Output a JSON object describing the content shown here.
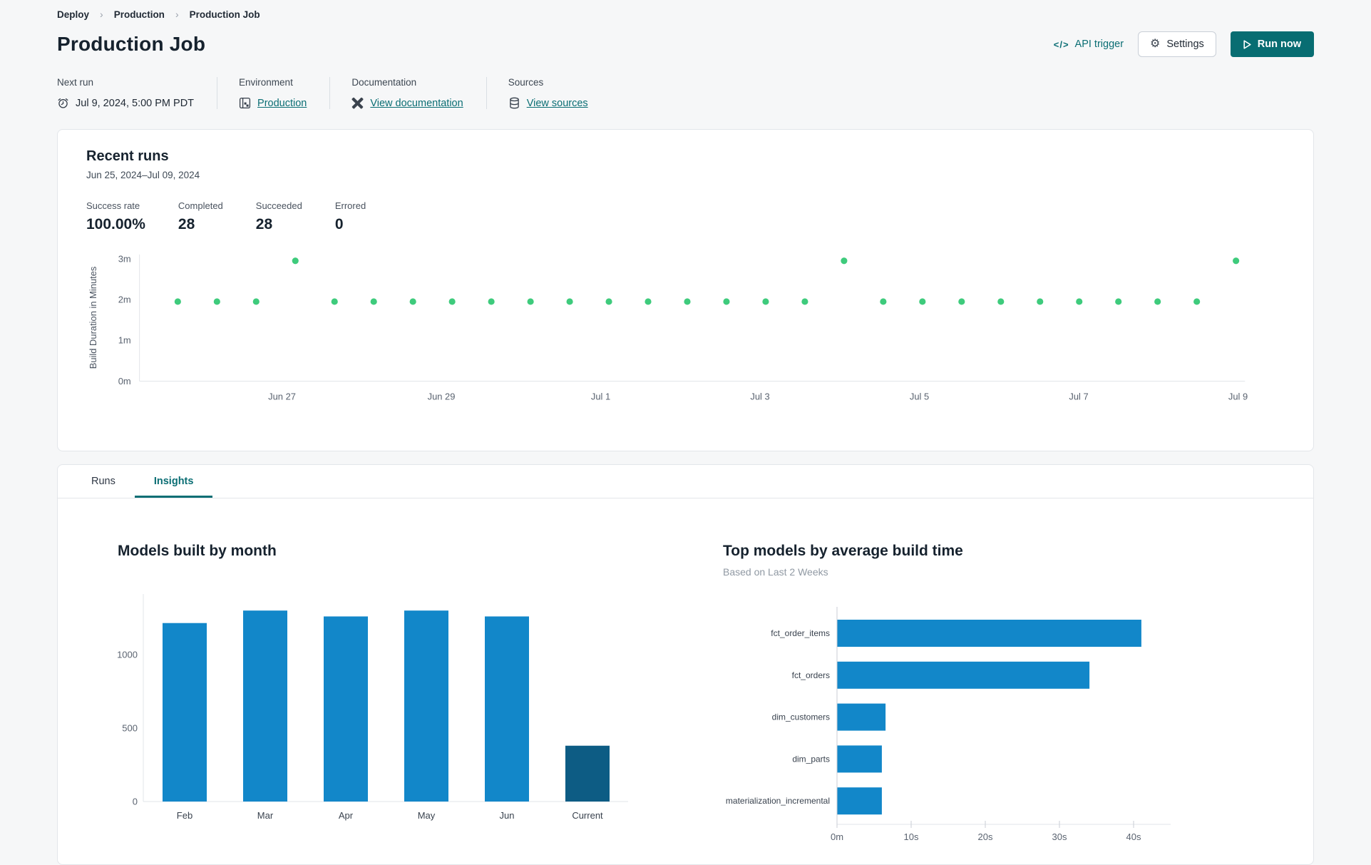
{
  "breadcrumb": {
    "separator": "›",
    "items": [
      {
        "label": "Deploy"
      },
      {
        "label": "Production"
      },
      {
        "label": "Production Job"
      }
    ]
  },
  "header": {
    "title": "Production Job",
    "api_trigger_label": "API trigger",
    "api_trigger_glyph": "</>",
    "settings_label": "Settings",
    "run_now_label": "Run now"
  },
  "info": {
    "next_run_label": "Next run",
    "next_run_value": "Jul 9, 2024, 5:00 PM PDT",
    "environment_label": "Environment",
    "environment_value": "Production",
    "documentation_label": "Documentation",
    "documentation_value": "View documentation",
    "sources_label": "Sources",
    "sources_value": "View sources"
  },
  "recent_runs": {
    "title": "Recent runs",
    "date_range": "Jun 25, 2024–Jul 09, 2024",
    "stats": [
      {
        "label": "Success rate",
        "value": "100.00%"
      },
      {
        "label": "Completed",
        "value": "28"
      },
      {
        "label": "Succeeded",
        "value": "28"
      },
      {
        "label": "Errored",
        "value": "0"
      }
    ]
  },
  "tabs": [
    {
      "label": "Runs",
      "active": false
    },
    {
      "label": "Insights",
      "active": true
    }
  ],
  "colors": {
    "accent_teal": "#086d72",
    "link_teal": "#0b6e74",
    "dot_green": "#3ecb7c",
    "bar_blue": "#1287c9",
    "bar_dark_blue": "#0d5c84",
    "axis_line": "#e2e5e9",
    "page_bg": "#f6f7f8",
    "card_border": "#e3e6ea"
  },
  "chart_data": [
    {
      "type": "scatter",
      "name": "recent-runs-build-duration",
      "ylabel": "Build Duration in Minutes",
      "y_ticks": [
        "0m",
        "1m",
        "2m",
        "3m"
      ],
      "x_ticks": [
        "Jun 27",
        "Jun 29",
        "Jul 1",
        "Jul 3",
        "Jul 5",
        "Jul 7",
        "Jul 9"
      ],
      "x_note": "28 runs evenly spaced over Jun 25 – Jul 9 (2 runs per day)",
      "ylim_minutes": [
        0,
        3.2
      ],
      "grid": false,
      "point_color": "#3ecb7c",
      "runs_minutes": [
        1.95,
        1.95,
        1.95,
        2.95,
        1.95,
        1.95,
        1.95,
        1.95,
        1.95,
        1.95,
        1.95,
        1.95,
        1.95,
        1.95,
        1.95,
        1.95,
        1.95,
        2.95,
        1.95,
        1.95,
        1.95,
        1.95,
        1.95,
        1.95,
        1.95,
        1.95,
        1.95,
        2.95
      ]
    },
    {
      "type": "bar",
      "title": "Models built by month",
      "categories": [
        "Feb",
        "Mar",
        "Apr",
        "May",
        "Jun",
        "Current"
      ],
      "values": [
        1215,
        1300,
        1260,
        1300,
        1260,
        380
      ],
      "bar_colors": [
        "#1287c9",
        "#1287c9",
        "#1287c9",
        "#1287c9",
        "#1287c9",
        "#0d5c84"
      ],
      "y_ticks": [
        0,
        500,
        1000
      ],
      "ylim": [
        0,
        1400
      ],
      "grid": false
    },
    {
      "type": "bar-horizontal",
      "title": "Top models by average build time",
      "subtitle": "Based on Last 2 Weeks",
      "categories": [
        "fct_order_items",
        "fct_orders",
        "dim_customers",
        "dim_parts",
        "materialization_incremental"
      ],
      "values_seconds": [
        41,
        34,
        6.5,
        6,
        6
      ],
      "x_ticks": [
        "0m",
        "10s",
        "20s",
        "30s",
        "40s"
      ],
      "x_tick_seconds": [
        0,
        10,
        20,
        30,
        40
      ],
      "xlim_seconds": [
        0,
        44
      ],
      "bar_color": "#1287c9",
      "grid": false
    }
  ]
}
